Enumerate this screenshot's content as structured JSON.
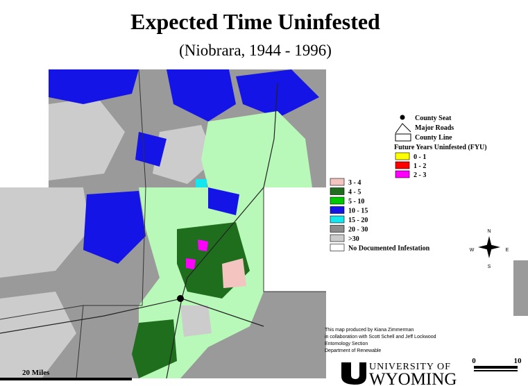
{
  "title": "Expected Time Uninfested",
  "subtitle": "(Niobrara, 1944 - 1996)",
  "legend": {
    "county_seat": "County Seat",
    "major_roads": "Major Roads",
    "county_line": "County Line",
    "heading": "Future Years Uninfested (FYU)",
    "classes": [
      {
        "label": "0 - 1",
        "color": "#ffff00"
      },
      {
        "label": "1 - 2",
        "color": "#ff0000"
      },
      {
        "label": "2 - 3",
        "color": "#ff00ff"
      },
      {
        "label": "3 - 4",
        "color": "#f4c4c0"
      },
      {
        "label": "4 - 5",
        "color": "#1e6e1e"
      },
      {
        "label": "5 - 10",
        "color": "#00c800"
      },
      {
        "label": "10 - 15",
        "color": "#1414e6"
      },
      {
        "label": "15 - 20",
        "color": "#14e6f0"
      },
      {
        "label": "20 - 30",
        "color": "#8c8c8c"
      },
      {
        "label": ">30",
        "color": "#cccccc"
      },
      {
        "label": "No Documented Infestation",
        "color": "#ffffff"
      }
    ]
  },
  "compass": {
    "n": "N",
    "s": "S",
    "w": "W",
    "e": "E"
  },
  "credits": [
    "This map produced by Kiana Zimmerman",
    "in collaboration with Scott Schell and Jeff Lockwood",
    "Entomology Section",
    "Department of Renewable"
  ],
  "scale_left": "20  Miles",
  "scale_right": {
    "start": "0",
    "end": "10"
  },
  "logo": {
    "line1": "UNIVERSITY OF",
    "line2": "WYOMING"
  }
}
